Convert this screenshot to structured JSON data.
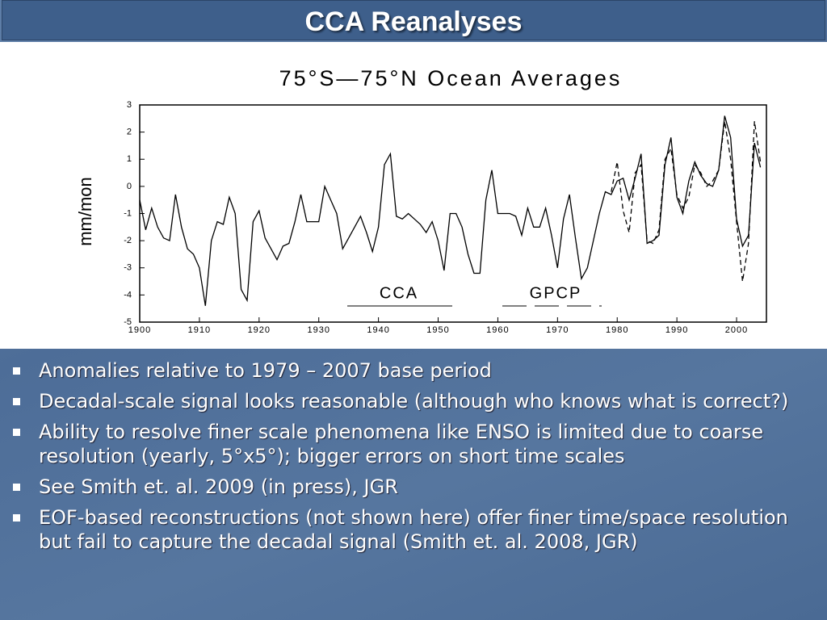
{
  "header": {
    "title": "CCA Reanalyses"
  },
  "chart_data": {
    "type": "line",
    "title": "75°S—75°N Ocean Averages",
    "ylabel": "mm/mon",
    "xlim": [
      1900,
      2005
    ],
    "xticks": [
      1900,
      1910,
      1920,
      1930,
      1940,
      1950,
      1960,
      1970,
      1980,
      1990,
      2000
    ],
    "ylim": [
      -5,
      3
    ],
    "yticks": [
      -5,
      -4,
      -3,
      -2,
      -1,
      0,
      1,
      2,
      3
    ],
    "series": [
      {
        "name": "CCA",
        "color": "#000000",
        "style": "solid",
        "x": [
          1900,
          1901,
          1902,
          1903,
          1904,
          1905,
          1906,
          1907,
          1908,
          1909,
          1910,
          1911,
          1912,
          1913,
          1914,
          1915,
          1916,
          1917,
          1918,
          1919,
          1920,
          1921,
          1922,
          1923,
          1924,
          1925,
          1926,
          1927,
          1928,
          1929,
          1930,
          1931,
          1932,
          1933,
          1934,
          1935,
          1936,
          1937,
          1938,
          1939,
          1940,
          1941,
          1942,
          1943,
          1944,
          1945,
          1946,
          1947,
          1948,
          1949,
          1950,
          1951,
          1952,
          1953,
          1954,
          1955,
          1956,
          1957,
          1958,
          1959,
          1960,
          1961,
          1962,
          1963,
          1964,
          1965,
          1966,
          1967,
          1968,
          1969,
          1970,
          1971,
          1972,
          1973,
          1974,
          1975,
          1976,
          1977,
          1978,
          1979,
          1980,
          1981,
          1982,
          1983,
          1984,
          1985,
          1986,
          1987,
          1988,
          1989,
          1990,
          1991,
          1992,
          1993,
          1994,
          1995,
          1996,
          1997,
          1998,
          1999,
          2000,
          2001,
          2002,
          2003,
          2004
        ],
        "values": [
          -0.5,
          -1.6,
          -0.8,
          -1.5,
          -1.9,
          -2.0,
          -0.3,
          -1.5,
          -2.3,
          -2.5,
          -3.0,
          -4.4,
          -2.0,
          -1.3,
          -1.4,
          -0.4,
          -1.0,
          -3.8,
          -4.2,
          -1.3,
          -0.9,
          -1.9,
          -2.3,
          -2.7,
          -2.2,
          -2.1,
          -1.3,
          -0.3,
          -1.3,
          -1.3,
          -1.3,
          0.0,
          -0.5,
          -1.0,
          -2.3,
          -1.9,
          -1.5,
          -1.1,
          -1.7,
          -2.4,
          -1.5,
          0.8,
          1.2,
          -1.1,
          -1.2,
          -1.0,
          -1.2,
          -1.4,
          -1.7,
          -1.3,
          -2.0,
          -3.1,
          -1.0,
          -1.0,
          -1.5,
          -2.5,
          -3.2,
          -3.2,
          -0.5,
          0.6,
          -1.0,
          -1.0,
          -1.0,
          -1.1,
          -1.8,
          -0.8,
          -1.5,
          -1.5,
          -0.8,
          -1.8,
          -3.0,
          -1.2,
          -0.3,
          -1.9,
          -3.4,
          -3.0,
          -2.0,
          -1.0,
          -0.2,
          -0.3,
          0.2,
          0.3,
          -0.5,
          0.3,
          1.2,
          -2.1,
          -2.0,
          -1.8,
          0.8,
          1.8,
          -0.4,
          -1.0,
          0.2,
          0.9,
          0.4,
          0.1,
          0.0,
          0.6,
          2.6,
          1.8,
          -1.2,
          -2.2,
          -1.8,
          1.6,
          0.7
        ]
      },
      {
        "name": "GPCP",
        "color": "#000000",
        "style": "dashed",
        "x": [
          1979,
          1980,
          1981,
          1982,
          1983,
          1984,
          1985,
          1986,
          1987,
          1988,
          1989,
          1990,
          1991,
          1992,
          1993,
          1994,
          1995,
          1996,
          1997,
          1998,
          1999,
          2000,
          2001,
          2002,
          2003,
          2004
        ],
        "values": [
          -0.2,
          0.9,
          -0.9,
          -1.7,
          0.5,
          0.8,
          -2.0,
          -2.1,
          -1.6,
          1.0,
          1.4,
          -0.3,
          -0.8,
          -0.4,
          0.8,
          0.5,
          0.0,
          0.2,
          0.6,
          2.4,
          1.0,
          -1.3,
          -3.5,
          -2.1,
          2.4,
          0.9
        ]
      }
    ]
  },
  "bullets": [
    "Anomalies relative to 1979 – 2007 base period",
    "Decadal-scale signal looks reasonable (although who knows what is correct?)",
    "Ability to resolve finer scale phenomena like ENSO is limited due to coarse resolution (yearly, 5°x5°); bigger errors on short time scales",
    "See Smith et. al. 2009 (in press), JGR",
    "EOF-based reconstructions (not shown here) offer finer time/space resolution but fail to capture the decadal signal (Smith et. al. 2008, JGR)"
  ]
}
